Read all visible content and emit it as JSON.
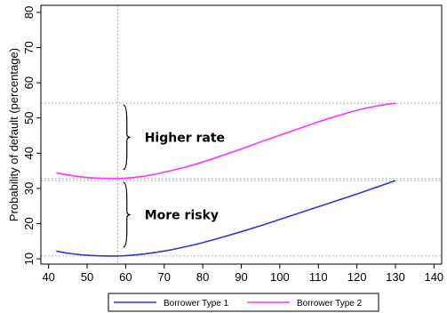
{
  "chart_data": {
    "type": "line",
    "title": "",
    "xlabel": "",
    "ylabel": "Probability of default (percentage)",
    "xlim": [
      38,
      142
    ],
    "ylim": [
      8.5,
      82
    ],
    "xticks": [
      40,
      50,
      60,
      70,
      80,
      90,
      100,
      110,
      120,
      130,
      140
    ],
    "yticks": [
      10,
      20,
      30,
      40,
      50,
      60,
      70,
      80
    ],
    "series": [
      {
        "name": "Borrower Type 1",
        "color": "#3333dd",
        "x": [
          42,
          45,
          50,
          55,
          58,
          60,
          65,
          70,
          75,
          80,
          85,
          90,
          95,
          100,
          105,
          110,
          115,
          120,
          125,
          130
        ],
        "y": [
          12.2,
          11.6,
          11.0,
          10.8,
          10.8,
          10.9,
          11.4,
          12.2,
          13.3,
          14.6,
          16.1,
          17.7,
          19.4,
          21.2,
          23.0,
          24.8,
          26.6,
          28.4,
          30.3,
          32.2
        ]
      },
      {
        "name": "Borrower Type 2",
        "color": "#ff33ff",
        "x": [
          42,
          45,
          50,
          55,
          58,
          60,
          65,
          70,
          75,
          80,
          85,
          90,
          95,
          100,
          105,
          110,
          115,
          120,
          125,
          130
        ],
        "y": [
          34.4,
          33.8,
          33.1,
          32.8,
          32.8,
          32.9,
          33.5,
          34.6,
          35.9,
          37.5,
          39.3,
          41.2,
          43.2,
          45.1,
          47.0,
          48.9,
          50.6,
          52.2,
          53.4,
          54.2
        ]
      }
    ],
    "reference_lines": {
      "vertical_x": [
        58
      ],
      "horizontal_y": [
        54.2,
        32.8,
        32.2,
        10.8
      ],
      "style": "dotted",
      "color": "#999999"
    },
    "annotations": [
      {
        "text": "Higher rate",
        "x_at": 58,
        "y_from": 32.8,
        "y_to": 54.2
      },
      {
        "text": "More risky",
        "x_at": 58,
        "y_from": 10.8,
        "y_to": 32.2
      }
    ],
    "legend": {
      "position": "bottom",
      "orientation": "horizontal"
    },
    "grid": false
  }
}
